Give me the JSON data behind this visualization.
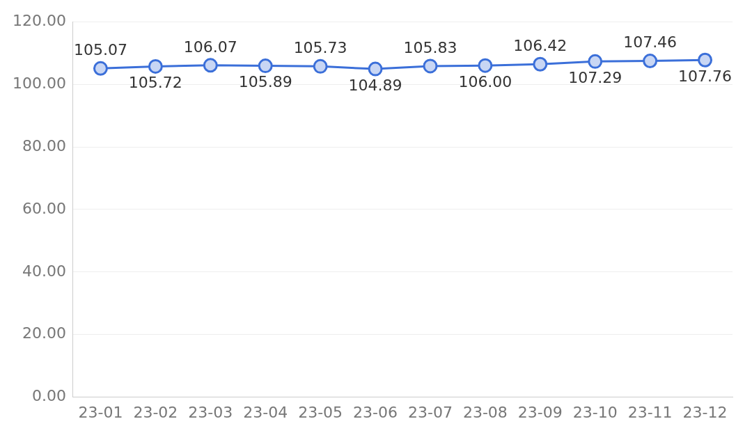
{
  "chart_data": {
    "type": "line",
    "categories": [
      "23-01",
      "23-02",
      "23-03",
      "23-04",
      "23-05",
      "23-06",
      "23-07",
      "23-08",
      "23-09",
      "23-10",
      "23-11",
      "23-12"
    ],
    "series": [
      {
        "color": "#3b6fd9",
        "values": [
          105.07,
          105.72,
          106.07,
          105.89,
          105.73,
          104.89,
          105.83,
          106.0,
          106.42,
          107.29,
          107.46,
          107.76
        ],
        "value_labels": [
          "105.07",
          "105.72",
          "106.07",
          "105.89",
          "105.73",
          "104.89",
          "105.83",
          "106.00",
          "106.42",
          "107.29",
          "107.46",
          "107.76"
        ]
      }
    ],
    "ylim": [
      0,
      120
    ],
    "yticks": [
      {
        "value": 0,
        "label": "0.00"
      },
      {
        "value": 20,
        "label": "20.00"
      },
      {
        "value": 40,
        "label": "40.00"
      },
      {
        "value": 60,
        "label": "60.00"
      },
      {
        "value": 80,
        "label": "80.00"
      },
      {
        "value": 100,
        "label": "100.00"
      },
      {
        "value": 120,
        "label": "120.00"
      }
    ],
    "grid": "y",
    "legend": false,
    "marker": "circle",
    "line_style": "solid"
  }
}
